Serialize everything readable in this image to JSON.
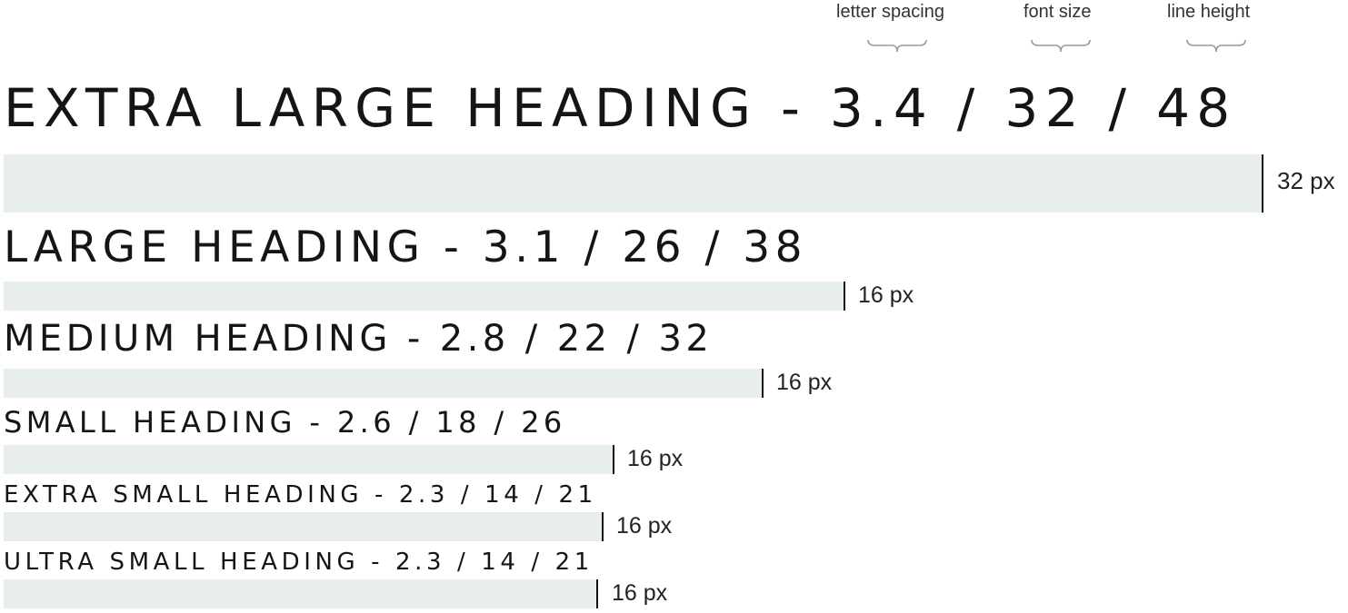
{
  "annotations": {
    "letter_spacing": "letter spacing",
    "font_size": "font size",
    "line_height": "line height"
  },
  "headings": {
    "extra_large": {
      "text": "EXTRA LARGE HEADING - 3.4 / 32 / 48",
      "spacing": "32 px"
    },
    "large": {
      "text": "LARGE HEADING - 3.1 / 26 / 38",
      "spacing": "16 px"
    },
    "medium": {
      "text": "MEDIUM HEADING - 2.8 / 22 / 32",
      "spacing": "16 px"
    },
    "small": {
      "text": "SMALL HEADING - 2.6 / 18 / 26",
      "spacing": "16 px"
    },
    "extra_small": {
      "text": "EXTRA SMALL HEADING - 2.3 / 14 / 21",
      "spacing": "16 px"
    },
    "ultra_small": {
      "text": "ULTRA SMALL HEADING - 2.3 / 14 / 21",
      "spacing": "16 px"
    }
  },
  "colors": {
    "spacer_fill": "#e8eeee",
    "text": "#151515",
    "marker": "#111111"
  }
}
